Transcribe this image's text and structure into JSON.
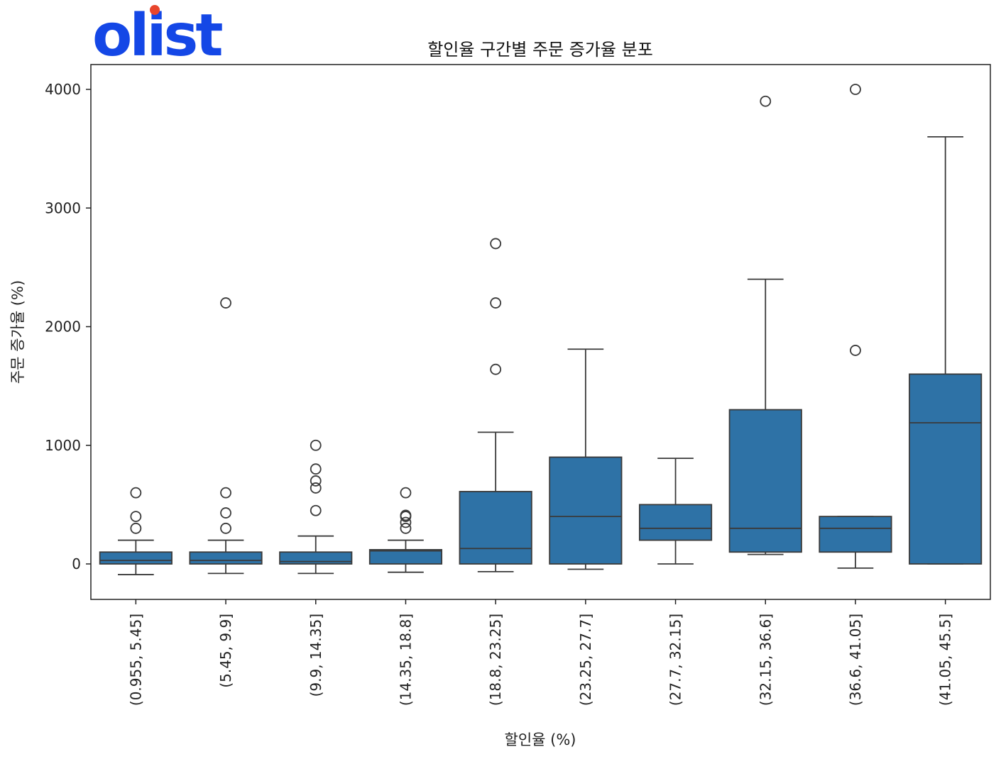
{
  "brand": {
    "logo_text": "olist",
    "logo_color": "#1447e6",
    "dot_color": "#e8452c"
  },
  "chart_data": {
    "type": "box",
    "title": "할인율 구간별 주문 증가율 분포",
    "xlabel": "할인율 (%)",
    "ylabel": "주문 증가율 (%)",
    "ylim": [
      -300,
      4200
    ],
    "yticks": [
      0,
      1000,
      2000,
      3000,
      4000
    ],
    "grid": false,
    "box_color": "#2e72a6",
    "categories": [
      "(0.955, 5.45]",
      "(5.45, 9.9]",
      "(9.9, 14.35]",
      "(14.35, 18.8]",
      "(18.8, 23.25]",
      "(23.25, 27.7]",
      "(27.7, 32.15]",
      "(32.15, 36.6]",
      "(36.6, 41.05]",
      "(41.05, 45.5]"
    ],
    "boxes": [
      {
        "whisker_low": -90,
        "q1": 0,
        "median": 30,
        "q3": 100,
        "whisker_high": 200,
        "outliers": [
          300,
          400,
          600
        ]
      },
      {
        "whisker_low": -80,
        "q1": 0,
        "median": 30,
        "q3": 100,
        "whisker_high": 200,
        "outliers": [
          300,
          430,
          600,
          2200
        ]
      },
      {
        "whisker_low": -80,
        "q1": 0,
        "median": 20,
        "q3": 100,
        "whisker_high": 235,
        "outliers": [
          450,
          640,
          700,
          800,
          1000
        ]
      },
      {
        "whisker_low": -70,
        "q1": 0,
        "median": 110,
        "q3": 120,
        "whisker_high": 200,
        "outliers": [
          300,
          350,
          400,
          410,
          600
        ]
      },
      {
        "whisker_low": -65,
        "q1": 0,
        "median": 130,
        "q3": 610,
        "whisker_high": 1110,
        "outliers": [
          1640,
          2200,
          2700
        ]
      },
      {
        "whisker_low": -45,
        "q1": 0,
        "median": 400,
        "q3": 900,
        "whisker_high": 1810,
        "outliers": []
      },
      {
        "whisker_low": 0,
        "q1": 200,
        "median": 300,
        "q3": 500,
        "whisker_high": 890,
        "outliers": []
      },
      {
        "whisker_low": 80,
        "q1": 100,
        "median": 300,
        "q3": 1300,
        "whisker_high": 2400,
        "outliers": [
          3900
        ]
      },
      {
        "whisker_low": -35,
        "q1": 100,
        "median": 300,
        "q3": 400,
        "whisker_high": 400,
        "outliers": [
          1800,
          4000
        ]
      },
      {
        "whisker_low": 0,
        "q1": 0,
        "median": 1190,
        "q3": 1600,
        "whisker_high": 3600,
        "outliers": []
      }
    ]
  }
}
